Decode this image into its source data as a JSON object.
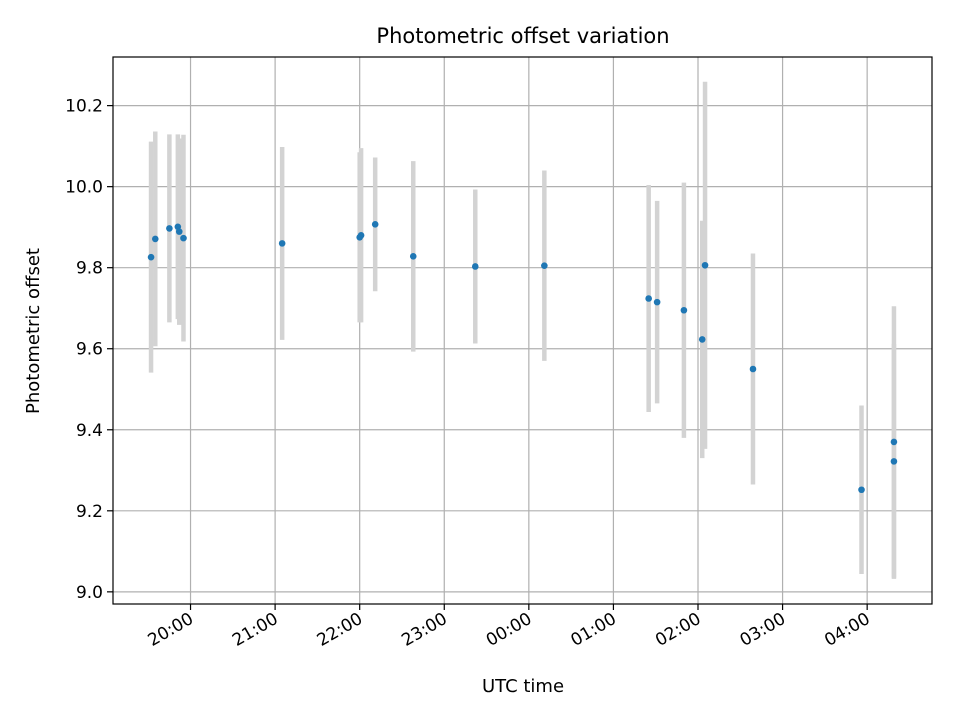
{
  "chart_data": {
    "type": "scatter",
    "title": "Photometric offset variation",
    "xlabel": "UTC time",
    "ylabel": "Photometric offset",
    "grid": true,
    "x_axis_type": "time",
    "x_time_range": [
      "19:05",
      "04:46"
    ],
    "ylim": [
      8.97,
      10.32
    ],
    "y_ticks": [
      9.0,
      9.2,
      9.4,
      9.6,
      9.8,
      10.0,
      10.2
    ],
    "y_tick_labels": [
      "9.0",
      "9.2",
      "9.4",
      "9.6",
      "9.8",
      "10.0",
      "10.2"
    ],
    "x_ticks": [
      "20:00",
      "21:00",
      "22:00",
      "23:00",
      "00:00",
      "01:00",
      "02:00",
      "03:00",
      "04:00"
    ],
    "colors": {
      "point": "#1f77b4",
      "errorbar": "#d3d3d3",
      "grid": "#b0b0b0"
    },
    "points": [
      {
        "t": "19:32",
        "y": 9.826,
        "err": 0.285
      },
      {
        "t": "19:35",
        "y": 9.871,
        "err": 0.265
      },
      {
        "t": "19:45",
        "y": 9.897,
        "err": 0.232
      },
      {
        "t": "19:51",
        "y": 9.901,
        "err": 0.228
      },
      {
        "t": "19:52",
        "y": 9.889,
        "err": 0.23
      },
      {
        "t": "19:55",
        "y": 9.873,
        "err": 0.255
      },
      {
        "t": "21:05",
        "y": 9.86,
        "err": 0.238
      },
      {
        "t": "22:00",
        "y": 9.875,
        "err": 0.21
      },
      {
        "t": "22:01",
        "y": 9.88,
        "err": 0.215
      },
      {
        "t": "22:11",
        "y": 9.907,
        "err": 0.165
      },
      {
        "t": "22:38",
        "y": 9.828,
        "err": 0.235
      },
      {
        "t": "23:22",
        "y": 9.803,
        "err": 0.19
      },
      {
        "t": "00:11",
        "y": 9.805,
        "err": 0.235
      },
      {
        "t": "01:25",
        "y": 9.724,
        "err": 0.28
      },
      {
        "t": "01:31",
        "y": 9.715,
        "err": 0.25
      },
      {
        "t": "01:50",
        "y": 9.695,
        "err": 0.315
      },
      {
        "t": "02:03",
        "y": 9.623,
        "err": 0.293
      },
      {
        "t": "02:05",
        "y": 9.806,
        "err": 0.453
      },
      {
        "t": "02:39",
        "y": 9.55,
        "err": 0.285
      },
      {
        "t": "03:56",
        "y": 9.252,
        "err": 0.208
      },
      {
        "t": "04:19",
        "y": 9.322,
        "err": 0.29
      },
      {
        "t": "04:19",
        "y": 9.37,
        "err": 0.335
      }
    ]
  }
}
